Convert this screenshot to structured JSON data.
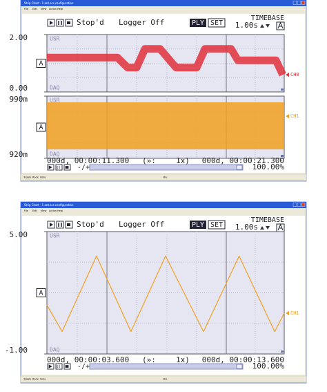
{
  "windows": [
    {
      "title": "Strip Chart - 1 ant.scs configuration",
      "menu": [
        "File",
        "Edit",
        "View",
        "Action",
        "Help"
      ],
      "toolbar": {
        "status": "Stop'd",
        "logger": "Logger Off",
        "play": "PLY",
        "set": "SET",
        "timebase_label": "TIMEBASE",
        "timebase": "1.00s"
      },
      "xlim": [
        11.3,
        21.3
      ],
      "panels": [
        {
          "type": "line",
          "ylim": [
            0,
            2
          ],
          "yticks": [
            {
              "value": 2,
              "label": "2.00"
            },
            {
              "value": 0,
              "label": "0.00"
            }
          ],
          "top_tag": "USR",
          "bottom_tag": "DAQ",
          "mode": "A",
          "channel": "CH0",
          "color": "#e0303c",
          "x": [
            11.3,
            14.27,
            14.7,
            15.08,
            15.43,
            16.07,
            16.74,
            17.61,
            17.96,
            19.06,
            19.35,
            20.95,
            21.24
          ],
          "values": [
            1.2,
            1.2,
            0.85,
            0.85,
            1.5,
            1.5,
            0.85,
            0.85,
            1.5,
            1.5,
            1.1,
            1.1,
            0.6
          ]
        },
        {
          "type": "band",
          "ylim": [
            0.92,
            0.99
          ],
          "yticks": [
            {
              "value": 0.99,
              "label": "990m"
            },
            {
              "value": 0.92,
              "label": "920m"
            }
          ],
          "top_tag": "USR",
          "bottom_tag": "DAQ",
          "mode": "A",
          "channel": "CH1",
          "color": "#f0a020",
          "x": [
            11.3,
            21.3
          ],
          "max": [
            0.983,
            0.983
          ],
          "min": [
            0.93,
            0.93
          ]
        }
      ],
      "start": "000d, 00:00:11.300",
      "speed_prefix": "(»:",
      "speed": "1x)",
      "end": "000d, 00:00:21.300",
      "zoom_toggle": "-/+",
      "zoom": "100.00%",
      "statusbar": "Toggle Mode: Note",
      "statusbar_right": "Idle"
    },
    {
      "title": "Strip Chart - 1 ant.scs configuration",
      "menu": [
        "File",
        "Edit",
        "View",
        "Action",
        "Help"
      ],
      "toolbar": {
        "status": "Stop'd",
        "logger": "Logger Off",
        "play": "PLY",
        "set": "SET",
        "timebase_label": "TIMEBASE",
        "timebase": "1.00s"
      },
      "xlim": [
        3.6,
        13.6
      ],
      "panels": [
        {
          "type": "line",
          "ylim": [
            -1,
            5
          ],
          "yticks": [
            {
              "value": 5,
              "label": "5.00"
            },
            {
              "value": -1,
              "label": "-1.00"
            }
          ],
          "top_tag": "USR",
          "bottom_tag": "DAQ",
          "mode": "A",
          "channel": "CH1",
          "color": "#f0a020",
          "x": [
            3.6,
            4.24,
            5.69,
            7.14,
            8.6,
            10.2,
            11.7,
            13.2,
            13.6
          ],
          "values": [
            1.4,
            0.1,
            3.8,
            0.1,
            3.8,
            0.1,
            3.8,
            0.1,
            1.0
          ]
        }
      ],
      "start": "000d, 00:00:03.600",
      "speed_prefix": "(»:",
      "speed": "1x)",
      "end": "000d, 00:00:13.600",
      "zoom_toggle": "-/+",
      "zoom": "100.00%",
      "statusbar": "Toggle Mode: Note",
      "statusbar_right": "Idle"
    }
  ]
}
